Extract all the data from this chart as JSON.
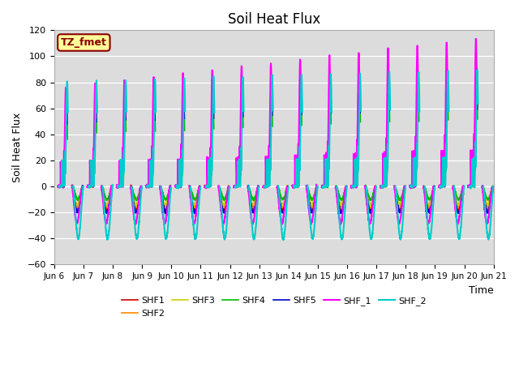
{
  "title": "Soil Heat Flux",
  "ylabel": "Soil Heat Flux",
  "xlabel": "Time",
  "ylim": [
    -60,
    120
  ],
  "yticks": [
    -60,
    -40,
    -20,
    0,
    20,
    40,
    60,
    80,
    100,
    120
  ],
  "background_color": "#dcdcdc",
  "figure_color": "#ffffff",
  "legend_label": "TZ_fmet",
  "legend_box_facecolor": "#ffff99",
  "legend_box_edgecolor": "#8B0000",
  "x_tick_labels": [
    "Jun 6",
    "Jun 7",
    "Jun 8",
    "Jun 9",
    "Jun 10",
    "Jun 11",
    "Jun 12",
    "Jun 13",
    "Jun 14",
    "Jun 15",
    "Jun 16",
    "Jun 17",
    "Jun 18",
    "Jun 19",
    "Jun 20",
    "Jun 21"
  ],
  "series_names": [
    "SHF1",
    "SHF2",
    "SHF3",
    "SHF4",
    "SHF5",
    "SHF_1",
    "SHF_2"
  ],
  "series_colors": [
    "#cc0000",
    "#ff8800",
    "#cccc00",
    "#00bb00",
    "#0000cc",
    "#ff00ff",
    "#00cccc"
  ],
  "series_lw": [
    1.2,
    1.2,
    1.2,
    1.2,
    1.2,
    1.5,
    1.5
  ],
  "n_days": 15,
  "samples_per_day": 288
}
